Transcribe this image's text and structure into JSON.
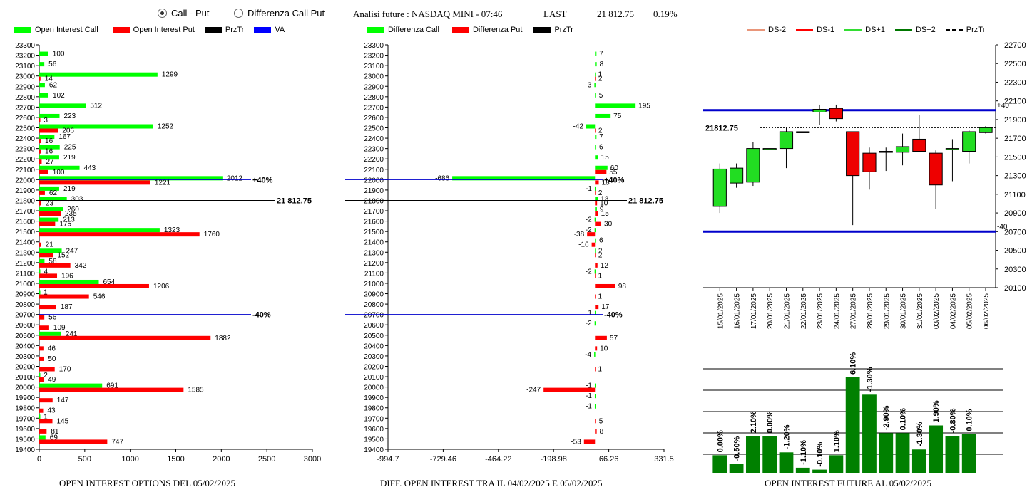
{
  "controls": {
    "option_call_put": "Call - Put",
    "option_diff": "Differenza Call Put"
  },
  "header": {
    "analysis": "Analisi future : NASDAQ MINI - 07:46",
    "last_label": "LAST",
    "last_value": "21 812.75",
    "change": "0.19%"
  },
  "legend_left": [
    {
      "label": "Open Interest Call",
      "color": "#00ff00"
    },
    {
      "label": "Open Interest Put",
      "color": "#ff0000"
    },
    {
      "label": "PrzTr",
      "color": "#000000"
    },
    {
      "label": "VA",
      "color": "#0000ff"
    }
  ],
  "legend_mid": [
    {
      "label": "Differenza Call",
      "color": "#00ff00"
    },
    {
      "label": "Differenza Put",
      "color": "#ff0000"
    },
    {
      "label": "PrzTr",
      "color": "#000000"
    }
  ],
  "legend_right": [
    {
      "label": "DS-2",
      "color": "#e9967a",
      "style": "solid"
    },
    {
      "label": "DS-1",
      "color": "#ff0000",
      "style": "solid"
    },
    {
      "label": "DS+1",
      "color": "#33dd33",
      "style": "solid"
    },
    {
      "label": "DS+2",
      "color": "#007700",
      "style": "solid"
    },
    {
      "label": "PrzTr",
      "color": "#000000",
      "style": "dashed"
    }
  ],
  "captions": {
    "left": "OPEN INTEREST OPTIONS DEL 05/02/2025",
    "mid": "DIFF. OPEN INTEREST TRA IL 04/02/2025 E 05/02/2025",
    "right": "OPEN INTEREST FUTURE AL 05/02/2025"
  },
  "chart_data": [
    {
      "type": "bar",
      "orientation": "horizontal",
      "categories": [
        "23300",
        "23200",
        "23100",
        "23000",
        "22900",
        "22800",
        "22700",
        "22600",
        "22500",
        "22400",
        "22300",
        "22200",
        "22100",
        "22000",
        "21900",
        "21800",
        "21700",
        "21600",
        "21500",
        "21400",
        "21300",
        "21200",
        "21100",
        "21000",
        "20900",
        "20800",
        "20700",
        "20600",
        "20500",
        "20400",
        "20300",
        "20200",
        "20100",
        "20000",
        "19900",
        "19800",
        "19700",
        "19600",
        "19500",
        "19400"
      ],
      "series": [
        {
          "name": "Open Interest Call",
          "color": "#00ff00",
          "values": [
            null,
            100,
            56,
            1299,
            62,
            102,
            512,
            223,
            1252,
            167,
            225,
            219,
            443,
            2012,
            219,
            303,
            260,
            213,
            1323,
            null,
            247,
            58,
            4,
            654,
            1,
            null,
            null,
            null,
            241,
            null,
            null,
            null,
            2,
            691,
            null,
            null,
            1,
            null,
            69,
            null
          ]
        },
        {
          "name": "Open Interest Put",
          "color": "#ff0000",
          "values": [
            null,
            null,
            null,
            14,
            null,
            null,
            null,
            3,
            206,
            16,
            16,
            27,
            100,
            1221,
            62,
            23,
            235,
            175,
            1760,
            21,
            152,
            342,
            196,
            1206,
            546,
            187,
            56,
            109,
            1882,
            46,
            50,
            170,
            49,
            1585,
            147,
            43,
            145,
            81,
            747,
            null
          ]
        }
      ],
      "xlim": [
        0,
        3000
      ],
      "xticks": [
        "0",
        "500",
        "1000",
        "1500",
        "2000",
        "2500",
        "3000"
      ],
      "markers": [
        {
          "y": "21800",
          "label": "21 812.75",
          "color": "#000000"
        },
        {
          "y": "22000",
          "label": "+40%",
          "color": "#0000cc"
        },
        {
          "y": "20700",
          "label": "-40%",
          "color": "#0000cc"
        }
      ]
    },
    {
      "type": "bar",
      "orientation": "horizontal",
      "categories": [
        "23300",
        "23200",
        "23100",
        "23000",
        "22900",
        "22800",
        "22700",
        "22600",
        "22500",
        "22400",
        "22300",
        "22200",
        "22100",
        "22000",
        "21900",
        "21800",
        "21700",
        "21600",
        "21500",
        "21400",
        "21300",
        "21200",
        "21100",
        "21000",
        "20900",
        "20800",
        "20700",
        "20600",
        "20500",
        "20400",
        "20300",
        "20200",
        "20100",
        "20000",
        "19900",
        "19800",
        "19700",
        "19600",
        "19500",
        "19400"
      ],
      "series": [
        {
          "name": "Differenza Call",
          "color": "#00ff00",
          "values": [
            null,
            7,
            8,
            1,
            -3,
            5,
            195,
            75,
            -42,
            7,
            6,
            15,
            60,
            -686,
            -1,
            13,
            9,
            -2,
            -2,
            6,
            2,
            null,
            -2,
            null,
            null,
            null,
            -1,
            -2,
            null,
            null,
            -4,
            null,
            null,
            -1,
            -1,
            -1,
            null,
            null,
            null,
            null
          ]
        },
        {
          "name": "Differenza Put",
          "color": "#ff0000",
          "values": [
            null,
            null,
            null,
            2,
            null,
            null,
            null,
            null,
            2,
            null,
            null,
            null,
            55,
            18,
            2,
            10,
            15,
            30,
            -38,
            -16,
            2,
            12,
            1,
            98,
            1,
            17,
            null,
            null,
            57,
            10,
            null,
            1,
            null,
            -247,
            null,
            null,
            5,
            8,
            -53,
            null
          ]
        }
      ],
      "xlim": [
        -994.7,
        331.5
      ],
      "xticks": [
        "-994.7",
        "-729.46",
        "-464.22",
        "-198.98",
        "66.26",
        "331.5"
      ],
      "markers": [
        {
          "y": "21800",
          "label": "21 812.75",
          "color": "#000000"
        },
        {
          "y": "22000",
          "label": "+40%",
          "color": "#0000cc"
        },
        {
          "y": "20700",
          "label": "-40%",
          "color": "#0000cc"
        }
      ]
    },
    {
      "type": "candlestick",
      "x": [
        "15/01/2025",
        "16/01/2025",
        "17/01/2025",
        "20/01/2025",
        "21/01/2025",
        "22/01/2025",
        "23/01/2025",
        "24/01/2025",
        "27/01/2025",
        "28/01/2025",
        "29/01/2025",
        "30/01/2025",
        "31/01/2025",
        "03/02/2025",
        "04/02/2025",
        "05/02/2025",
        "06/02/2025"
      ],
      "ohlc": [
        [
          20970,
          21430,
          20900,
          21370
        ],
        [
          21220,
          21430,
          21170,
          21380
        ],
        [
          21230,
          21660,
          21190,
          21590
        ],
        [
          21580,
          21590,
          21580,
          21590
        ],
        [
          21590,
          21810,
          21380,
          21770
        ],
        [
          21770,
          21770,
          21770,
          21770
        ],
        [
          21980,
          22060,
          21840,
          22010
        ],
        [
          22020,
          22060,
          21880,
          21910
        ],
        [
          21770,
          21770,
          20770,
          21300
        ],
        [
          21540,
          21600,
          21150,
          21340
        ],
        [
          21550,
          21600,
          21350,
          21560
        ],
        [
          21550,
          21750,
          21410,
          21610
        ],
        [
          21690,
          21950,
          21560,
          21560
        ],
        [
          21540,
          21570,
          20940,
          21200
        ],
        [
          21580,
          21690,
          21240,
          21590
        ],
        [
          21560,
          21790,
          21430,
          21770
        ],
        [
          21760,
          21830,
          21750,
          21812.75
        ]
      ],
      "ylim": [
        20100,
        22700
      ],
      "yticks": [
        "20100",
        "20300",
        "20500",
        "20700",
        "20900",
        "21100",
        "21300",
        "21500",
        "21700",
        "21900",
        "22100",
        "22300",
        "22500",
        "22700"
      ],
      "lines": [
        {
          "y": 21812.75,
          "label": "21812.75",
          "style": "dashed",
          "color": "#000000"
        },
        {
          "y": 22000,
          "label": "+40",
          "color": "#0000cc"
        },
        {
          "y": 20700,
          "label": "-40",
          "color": "#0000cc"
        }
      ]
    },
    {
      "type": "bar",
      "categories": [
        "15/01/2025",
        "16/01/2025",
        "17/01/2025",
        "20/01/2025",
        "21/01/2025",
        "22/01/2025",
        "23/01/2025",
        "24/01/2025",
        "27/01/2025",
        "28/01/2025",
        "29/01/2025",
        "30/01/2025",
        "31/01/2025",
        "03/02/2025",
        "04/02/2025",
        "05/02/2025",
        "06/02/2025"
      ],
      "relative_height": [
        0.19,
        0.1,
        0.39,
        0.39,
        0.22,
        0.06,
        0.04,
        0.19,
        1.0,
        0.82,
        0.42,
        0.42,
        0.25,
        0.5,
        0.39,
        0.41,
        0.0
      ],
      "labels": [
        "0.00%",
        "-0.50%",
        "2.10%",
        "0.00%",
        "-1.20%",
        "-1.10%",
        "-0.10%",
        "1.10%",
        "6.10%",
        "-1.30%",
        "-2.90%",
        "0.10%",
        "-1.30%",
        "1.90%",
        "-0.80%",
        "0.10%",
        ""
      ],
      "color": "#008000"
    }
  ]
}
